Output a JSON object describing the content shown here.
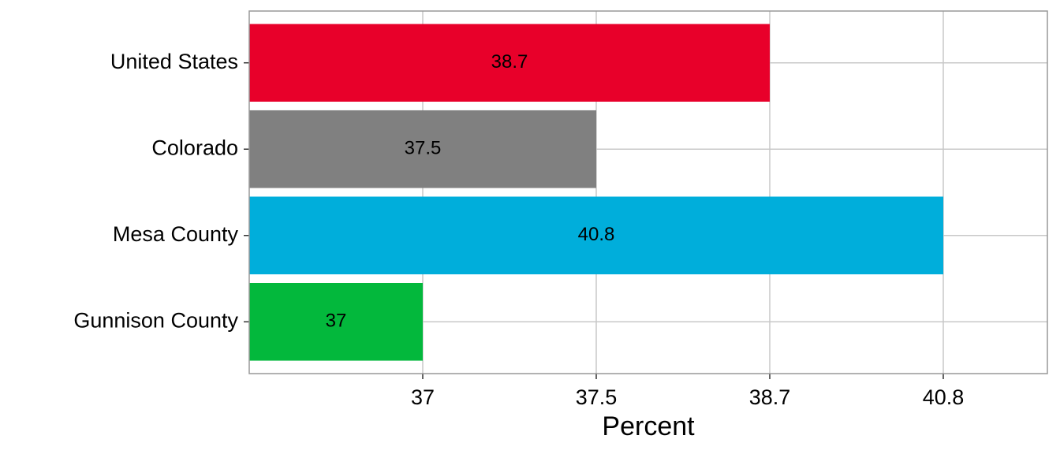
{
  "chart_data": {
    "type": "bar",
    "orientation": "horizontal",
    "x_scale": "discrete",
    "categories": [
      "United States",
      "Colorado",
      "Mesa County",
      "Gunnison County"
    ],
    "values": [
      38.7,
      37.5,
      40.8,
      37
    ],
    "colors": [
      "#e8002a",
      "#808080",
      "#00aedb",
      "#03b83c"
    ],
    "xticks": [
      37,
      37.5,
      38.7,
      40.8
    ],
    "x_label": "Percent",
    "grid": true
  }
}
